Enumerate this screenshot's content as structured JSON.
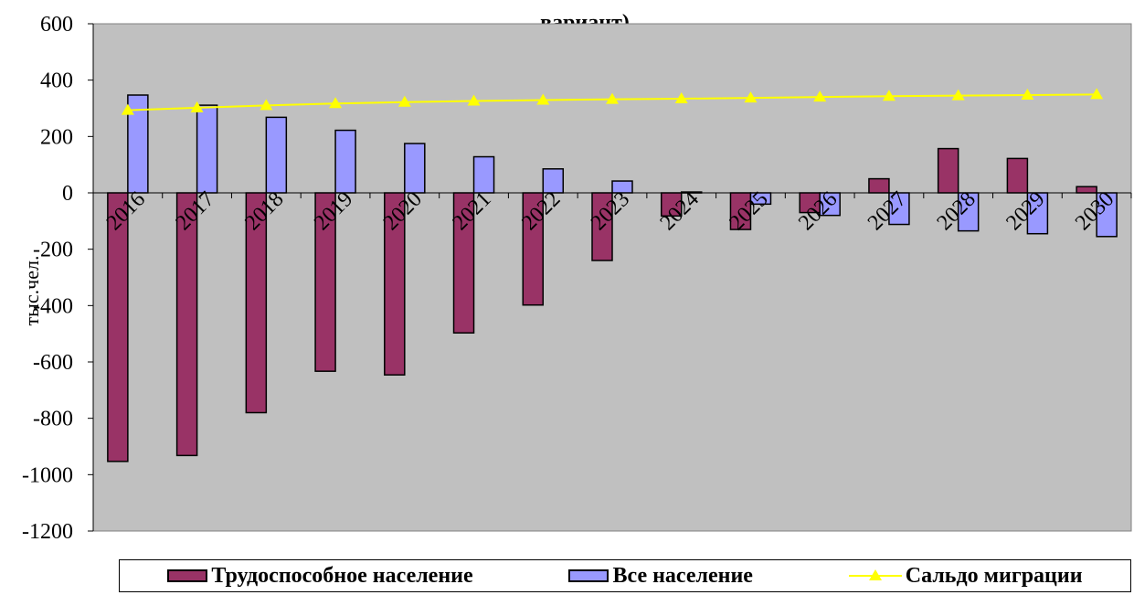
{
  "chart_data": {
    "type": "bar",
    "title": "вариант)",
    "xlabel": "",
    "ylabel": "тыс.чел.",
    "ylim": [
      -1200,
      600
    ],
    "yticks": [
      600,
      400,
      200,
      0,
      -200,
      -400,
      -600,
      -800,
      -1000,
      -1200
    ],
    "ytick_labels": [
      "600",
      "400",
      "200",
      "0",
      "-200",
      "-400",
      "-600",
      "-800",
      "-1000",
      "-1200"
    ],
    "categories": [
      "2016",
      "2017",
      "2018",
      "2019",
      "2020",
      "2021",
      "2022",
      "2023",
      "2024",
      "2025",
      "2026",
      "2027",
      "2028",
      "2029",
      "2030"
    ],
    "grid": false,
    "legend_position": "bottom",
    "series": [
      {
        "name": "Трудоспособное население",
        "type": "bar",
        "color": "#993366",
        "values": [
          -953,
          -932,
          -780,
          -633,
          -646,
          -497,
          -398,
          -240,
          -82,
          -130,
          -70,
          50,
          157,
          122,
          22
        ]
      },
      {
        "name": "Все население",
        "type": "bar",
        "color": "#9999FF",
        "values": [
          347,
          311,
          268,
          222,
          175,
          128,
          85,
          42,
          3,
          -40,
          -80,
          -112,
          -135,
          -145,
          -155
        ]
      },
      {
        "name": "Сальдо миграции",
        "type": "line",
        "color": "#FFFF00",
        "values": [
          293,
          302,
          310,
          317,
          322,
          326,
          329,
          332,
          334,
          337,
          340,
          343,
          345,
          347,
          349
        ]
      }
    ]
  }
}
